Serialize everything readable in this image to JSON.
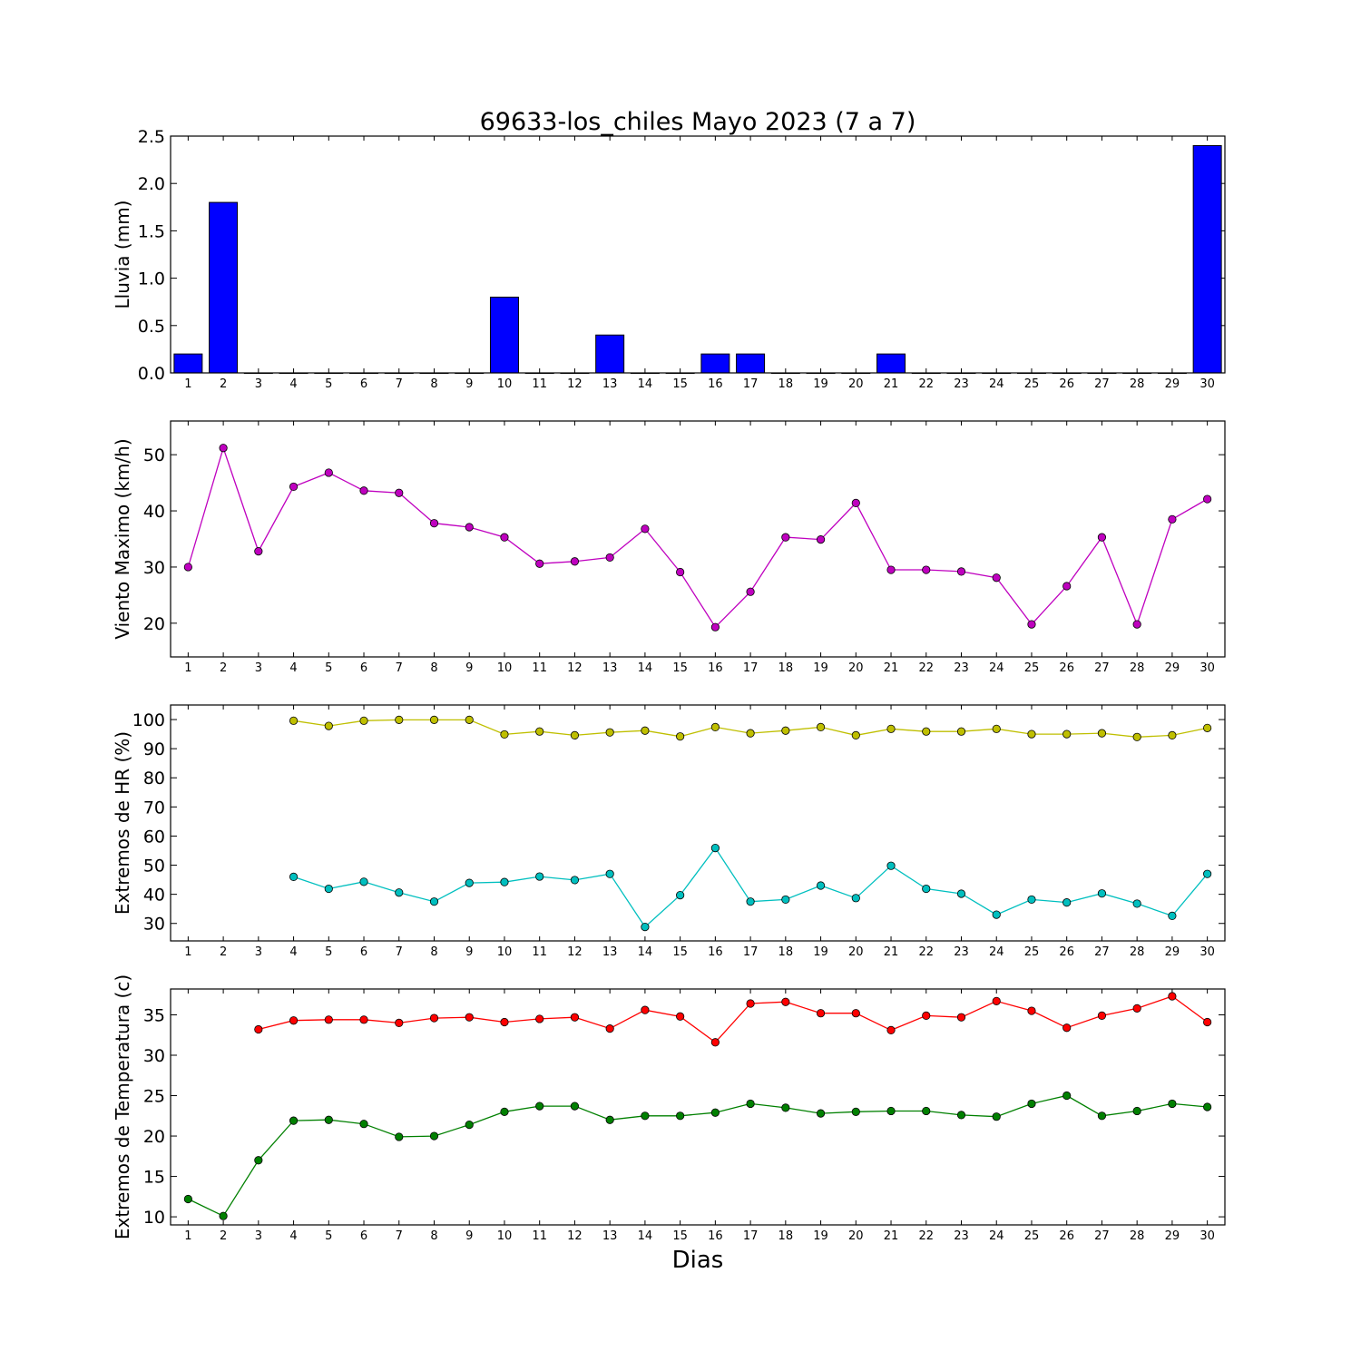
{
  "figure": {
    "title": "69633-los_chiles Mayo 2023  (7 a 7)",
    "xlabel": "Dias"
  },
  "chart_data": [
    {
      "type": "bar",
      "ylabel": "Lluvia (mm)",
      "ylim": [
        0,
        2.5
      ],
      "yticks": [
        "0.0",
        "0.5",
        "1.0",
        "1.5",
        "2.0",
        "2.5"
      ],
      "xlim": [
        0.5,
        30.5
      ],
      "grid": false,
      "categories": [
        1,
        2,
        3,
        4,
        5,
        6,
        7,
        8,
        9,
        10,
        11,
        12,
        13,
        14,
        15,
        16,
        17,
        18,
        19,
        20,
        21,
        22,
        23,
        24,
        25,
        26,
        27,
        28,
        29,
        30
      ],
      "series": [
        {
          "color": "#0000ff",
          "values": [
            0.2,
            1.8,
            0,
            0,
            0,
            0,
            0,
            0,
            0,
            0.8,
            0,
            0,
            0.4,
            0,
            0,
            0.2,
            0.2,
            0,
            0,
            0,
            0.2,
            0,
            0,
            0,
            0,
            0,
            0,
            0,
            0,
            2.4
          ]
        }
      ]
    },
    {
      "type": "line",
      "ylabel": "Viento Maximo (km/h)",
      "ylim": [
        14,
        56
      ],
      "yticks": [
        "20",
        "30",
        "40",
        "50"
      ],
      "xlim": [
        0.5,
        30.5
      ],
      "grid": false,
      "x": [
        1,
        2,
        3,
        4,
        5,
        6,
        7,
        8,
        9,
        10,
        11,
        12,
        13,
        14,
        15,
        16,
        17,
        18,
        19,
        20,
        21,
        22,
        23,
        24,
        25,
        26,
        27,
        28,
        29,
        30
      ],
      "series": [
        {
          "color": "#bf00bf",
          "values": [
            30,
            51.2,
            32.8,
            44.3,
            46.8,
            43.6,
            43.2,
            37.8,
            37.1,
            35.3,
            30.6,
            31.0,
            31.7,
            36.8,
            29.1,
            19.3,
            25.6,
            35.3,
            34.9,
            41.4,
            29.5,
            29.5,
            29.2,
            28.1,
            19.8,
            26.6,
            35.3,
            19.8,
            38.5,
            42.1
          ]
        }
      ]
    },
    {
      "type": "line",
      "ylabel": "Extremos de HR (%)",
      "ylim": [
        24,
        105
      ],
      "yticks": [
        "30",
        "40",
        "50",
        "60",
        "70",
        "80",
        "90",
        "100"
      ],
      "xlim": [
        0.5,
        30.5
      ],
      "grid": false,
      "x": [
        1,
        2,
        3,
        4,
        5,
        6,
        7,
        8,
        9,
        10,
        11,
        12,
        13,
        14,
        15,
        16,
        17,
        18,
        19,
        20,
        21,
        22,
        23,
        24,
        25,
        26,
        27,
        28,
        29,
        30
      ],
      "series": [
        {
          "color": "#bfbf00",
          "values": [
            null,
            null,
            null,
            99.6,
            97.8,
            99.6,
            99.9,
            99.9,
            99.9,
            94.9,
            95.9,
            94.6,
            95.6,
            96.2,
            94.2,
            97.4,
            95.3,
            96.2,
            97.4,
            94.6,
            96.8,
            95.9,
            95.9,
            96.8,
            95.0,
            95.0,
            95.3,
            94.0,
            94.6,
            97.1
          ]
        },
        {
          "color": "#00bfbf",
          "values": [
            null,
            null,
            null,
            46.0,
            41.9,
            44.3,
            40.6,
            37.5,
            43.9,
            44.2,
            46.1,
            44.9,
            47.0,
            28.8,
            39.7,
            55.9,
            37.5,
            38.2,
            43.0,
            38.7,
            49.8,
            41.9,
            40.2,
            33.0,
            38.2,
            37.2,
            40.3,
            36.8,
            32.6,
            47.0
          ]
        }
      ]
    },
    {
      "type": "line",
      "ylabel": "Extremos de Temperatura (c)",
      "ylim": [
        9,
        38.2
      ],
      "yticks": [
        "10",
        "15",
        "20",
        "25",
        "30",
        "35"
      ],
      "xlim": [
        0.5,
        30.5
      ],
      "grid": false,
      "x": [
        1,
        2,
        3,
        4,
        5,
        6,
        7,
        8,
        9,
        10,
        11,
        12,
        13,
        14,
        15,
        16,
        17,
        18,
        19,
        20,
        21,
        22,
        23,
        24,
        25,
        26,
        27,
        28,
        29,
        30
      ],
      "series": [
        {
          "color": "#ff0000",
          "values": [
            null,
            null,
            33.2,
            34.3,
            34.4,
            34.4,
            34.0,
            34.6,
            34.7,
            34.1,
            34.5,
            34.7,
            33.3,
            35.6,
            34.8,
            31.6,
            36.4,
            36.6,
            35.2,
            35.2,
            33.1,
            34.9,
            34.7,
            36.7,
            35.5,
            33.4,
            34.9,
            35.8,
            37.3,
            34.1
          ]
        },
        {
          "color": "#008000",
          "values": [
            12.2,
            10.1,
            17.0,
            21.9,
            22.0,
            21.5,
            19.9,
            20.0,
            21.4,
            23.0,
            23.7,
            23.7,
            22.0,
            22.5,
            22.5,
            22.9,
            24.0,
            23.5,
            22.8,
            23.0,
            23.1,
            23.1,
            22.6,
            22.4,
            24.0,
            25.0,
            22.5,
            23.1,
            24.0,
            23.6
          ]
        }
      ]
    }
  ]
}
